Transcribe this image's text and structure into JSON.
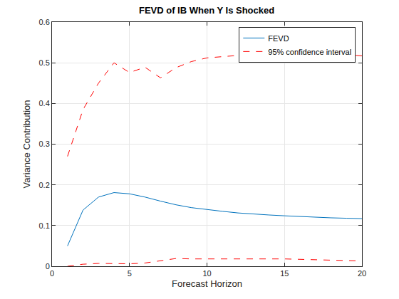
{
  "chart_data": {
    "type": "line",
    "title": "FEVD of IB When Y Is Shocked",
    "x_label": "Forecast Horizon",
    "y_label": "Variance Contribution",
    "x": [
      1,
      2,
      3,
      4,
      5,
      6,
      7,
      8,
      9,
      10,
      11,
      12,
      13,
      14,
      15,
      16,
      17,
      18,
      19,
      20
    ],
    "series": [
      {
        "name": "FEVD",
        "color": "#0072BD",
        "line_style": "solid",
        "values": [
          0.05,
          0.138,
          0.17,
          0.181,
          0.178,
          0.17,
          0.16,
          0.151,
          0.144,
          0.139,
          0.135,
          0.131,
          0.128,
          0.126,
          0.124,
          0.122,
          0.121,
          0.119,
          0.118,
          0.117
        ]
      },
      {
        "name": "95% confidence interval",
        "color": "#FF0000",
        "line_style": "dashed",
        "lower": [
          0.0,
          0.005,
          0.007,
          0.007,
          0.006,
          0.008,
          0.013,
          0.019,
          0.018,
          0.018,
          0.018,
          0.019,
          0.019,
          0.019,
          0.018,
          0.017,
          0.016,
          0.015,
          0.014,
          0.013
        ],
        "upper": [
          0.27,
          0.385,
          0.45,
          0.5,
          0.476,
          0.489,
          0.463,
          0.488,
          0.503,
          0.512,
          0.515,
          0.518,
          0.519,
          0.52,
          0.52,
          0.52,
          0.52,
          0.52,
          0.52,
          0.517
        ]
      }
    ],
    "xlim": [
      0,
      20
    ],
    "ylim": [
      0,
      0.6
    ],
    "xticks": [
      0,
      5,
      10,
      15,
      20
    ],
    "yticks": [
      0,
      0.1,
      0.2,
      0.3,
      0.4,
      0.5,
      0.6
    ],
    "grid": true,
    "legend": "upper right"
  }
}
